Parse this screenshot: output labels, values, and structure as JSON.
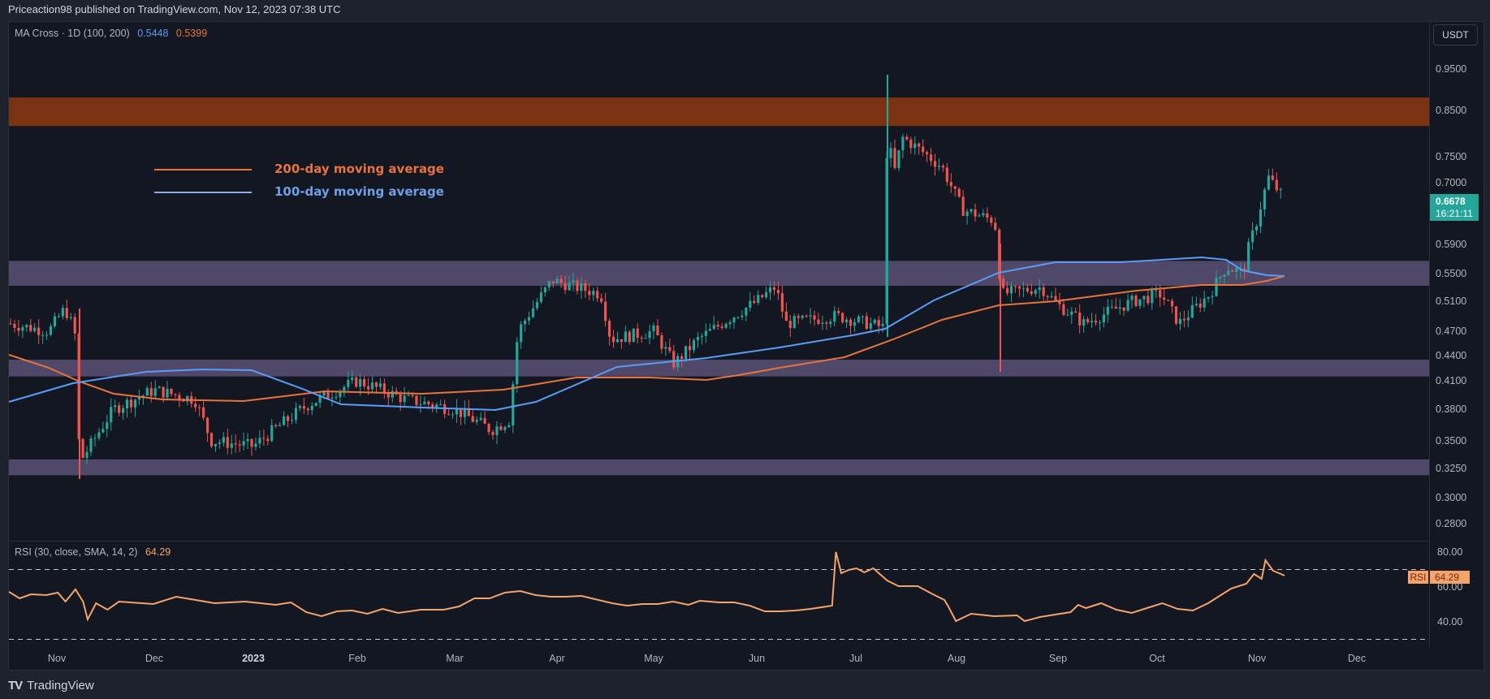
{
  "header": {
    "published": "Priceaction98 published on TradingView.com, Nov 12, 2023 07:38 UTC"
  },
  "indicator_ma": {
    "label": "MA Cross · 1D (100, 200)",
    "ma100_value": "0.5448",
    "ma200_value": "0.5399"
  },
  "indicator_rsi": {
    "label": "RSI (30, close, SMA, 14, 2)",
    "value": "64.29",
    "tag_label": "RSI",
    "tag_value": "64.29"
  },
  "currency": "USDT",
  "last_price": {
    "value": "0.6678",
    "countdown": "16:21:11"
  },
  "annotations": {
    "ma200_label": "200-day moving average",
    "ma100_label": "100-day moving average"
  },
  "footer": {
    "brand": "TradingView",
    "logo": "TV"
  },
  "colors": {
    "bg": "#131722",
    "up": "#26a69a",
    "down": "#ef5350",
    "ma100": "#5b9cf6",
    "ma200": "#e8743b",
    "rsi": "#f4a46a",
    "zone_resist": "#7a3414",
    "zone_support": "#4f4869"
  },
  "chart_data": [
    {
      "type": "candlestick",
      "title": "MA Cross · 1D (100, 200)",
      "ylabel": "USDT",
      "yscale": "log",
      "y_ticks": [
        0.95,
        0.85,
        0.75,
        0.7,
        0.59,
        0.55,
        0.51,
        0.47,
        0.44,
        0.41,
        0.38,
        0.35,
        0.325,
        0.3,
        0.28
      ],
      "x_ticks": [
        "Nov",
        "Dec",
        "2023",
        "Feb",
        "Mar",
        "Apr",
        "May",
        "Jun",
        "Jul",
        "Aug",
        "Sep",
        "Oct",
        "Nov",
        "Dec"
      ],
      "last_close": 0.6678,
      "zones": [
        {
          "name": "resistance-zone",
          "low": 0.815,
          "high": 0.88
        },
        {
          "name": "upper-range-zone",
          "low": 0.532,
          "high": 0.567
        },
        {
          "name": "mid-support-zone",
          "low": 0.415,
          "high": 0.435
        },
        {
          "name": "lower-support-zone",
          "low": 0.319,
          "high": 0.333
        }
      ],
      "price_path": [
        {
          "date": "Oct",
          "close": 0.48
        },
        {
          "date": "Oct late",
          "close": 0.47
        },
        {
          "date": "Nov early",
          "close": 0.5
        },
        {
          "date": "Nov 8",
          "close": 0.47
        },
        {
          "date": "Nov 10",
          "close": 0.33
        },
        {
          "date": "Nov 20",
          "close": 0.38
        },
        {
          "date": "Dec 1",
          "close": 0.4
        },
        {
          "date": "Dec 15",
          "close": 0.39
        },
        {
          "date": "Dec 20",
          "close": 0.35
        },
        {
          "date": "Jan 1",
          "close": 0.345
        },
        {
          "date": "Jan 15",
          "close": 0.385
        },
        {
          "date": "Feb 1",
          "close": 0.41
        },
        {
          "date": "Feb 15",
          "close": 0.39
        },
        {
          "date": "Mar 1",
          "close": 0.38
        },
        {
          "date": "Mar 10",
          "close": 0.36
        },
        {
          "date": "Mar 20",
          "close": 0.37
        },
        {
          "date": "Mar 22",
          "close": 0.47
        },
        {
          "date": "Apr 3",
          "close": 0.54
        },
        {
          "date": "Apr 15",
          "close": 0.52
        },
        {
          "date": "Apr 20",
          "close": 0.46
        },
        {
          "date": "May 1",
          "close": 0.47
        },
        {
          "date": "May 10",
          "close": 0.43
        },
        {
          "date": "May 20",
          "close": 0.46
        },
        {
          "date": "Jun 1",
          "close": 0.51
        },
        {
          "date": "Jun 8",
          "close": 0.53
        },
        {
          "date": "Jun 12",
          "close": 0.48
        },
        {
          "date": "Jun 25",
          "close": 0.49
        },
        {
          "date": "Jul 12",
          "close": 0.475
        },
        {
          "date": "Jul 13",
          "close": 0.82
        },
        {
          "date": "Jul 15",
          "close": 0.71
        },
        {
          "date": "Jul 20",
          "close": 0.79
        },
        {
          "date": "Jul 30",
          "close": 0.73
        },
        {
          "date": "Aug 8",
          "close": 0.65
        },
        {
          "date": "Aug 15",
          "close": 0.63
        },
        {
          "date": "Aug 17",
          "close": 0.52
        },
        {
          "date": "Aug 28",
          "close": 0.53
        },
        {
          "date": "Sep 5",
          "close": 0.505
        },
        {
          "date": "Sep 12",
          "close": 0.48
        },
        {
          "date": "Sep 25",
          "close": 0.51
        },
        {
          "date": "Oct 5",
          "close": 0.52
        },
        {
          "date": "Oct 12",
          "close": 0.48
        },
        {
          "date": "Oct 20",
          "close": 0.52
        },
        {
          "date": "Oct 25",
          "close": 0.56
        },
        {
          "date": "Oct 30",
          "close": 0.55
        },
        {
          "date": "Nov 4",
          "close": 0.63
        },
        {
          "date": "Nov 6",
          "close": 0.71
        },
        {
          "date": "Nov 12",
          "close": 0.6678
        }
      ],
      "series": [
        {
          "name": "100-day moving average",
          "color": "#5b9cf6",
          "last": 0.5448
        },
        {
          "name": "200-day moving average",
          "color": "#e8743b",
          "last": 0.5399
        }
      ]
    },
    {
      "type": "line",
      "title": "RSI (30, close, SMA, 14, 2)",
      "y_ticks": [
        80.0,
        60.0,
        40.0
      ],
      "bands": [
        70,
        30
      ],
      "last": 64.29,
      "peak": {
        "date": "Jul 13",
        "value": 78
      }
    }
  ]
}
